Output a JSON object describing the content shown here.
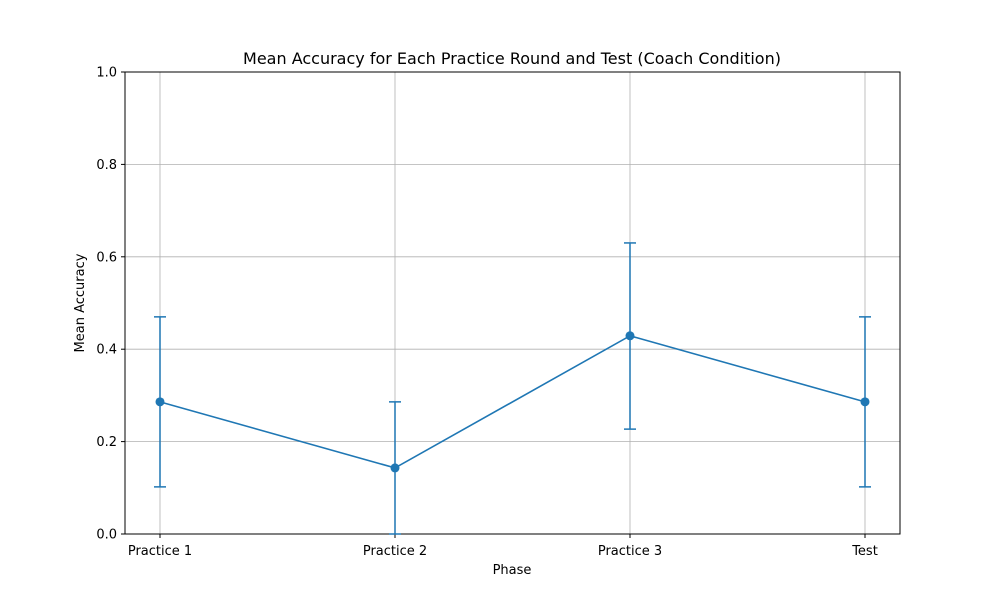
{
  "chart_data": {
    "type": "line",
    "title": "Mean Accuracy for Each Practice Round and Test (Coach Condition)",
    "xlabel": "Phase",
    "ylabel": "Mean Accuracy",
    "categories": [
      "Practice 1",
      "Practice 2",
      "Practice 3",
      "Test"
    ],
    "series": [
      {
        "values": [
          0.286,
          0.143,
          0.429,
          0.286
        ],
        "error_low": [
          0.102,
          0.0,
          0.227,
          0.102
        ],
        "error_high": [
          0.47,
          0.286,
          0.63,
          0.47
        ]
      }
    ],
    "ylim": [
      0,
      1
    ],
    "yticks": [
      "0.0",
      "0.2",
      "0.4",
      "0.6",
      "0.8",
      "1.0"
    ],
    "grid": true,
    "markers": true,
    "error_bars": true,
    "series_color": "#1f77b4",
    "grid_color": "#b0b0b0"
  }
}
